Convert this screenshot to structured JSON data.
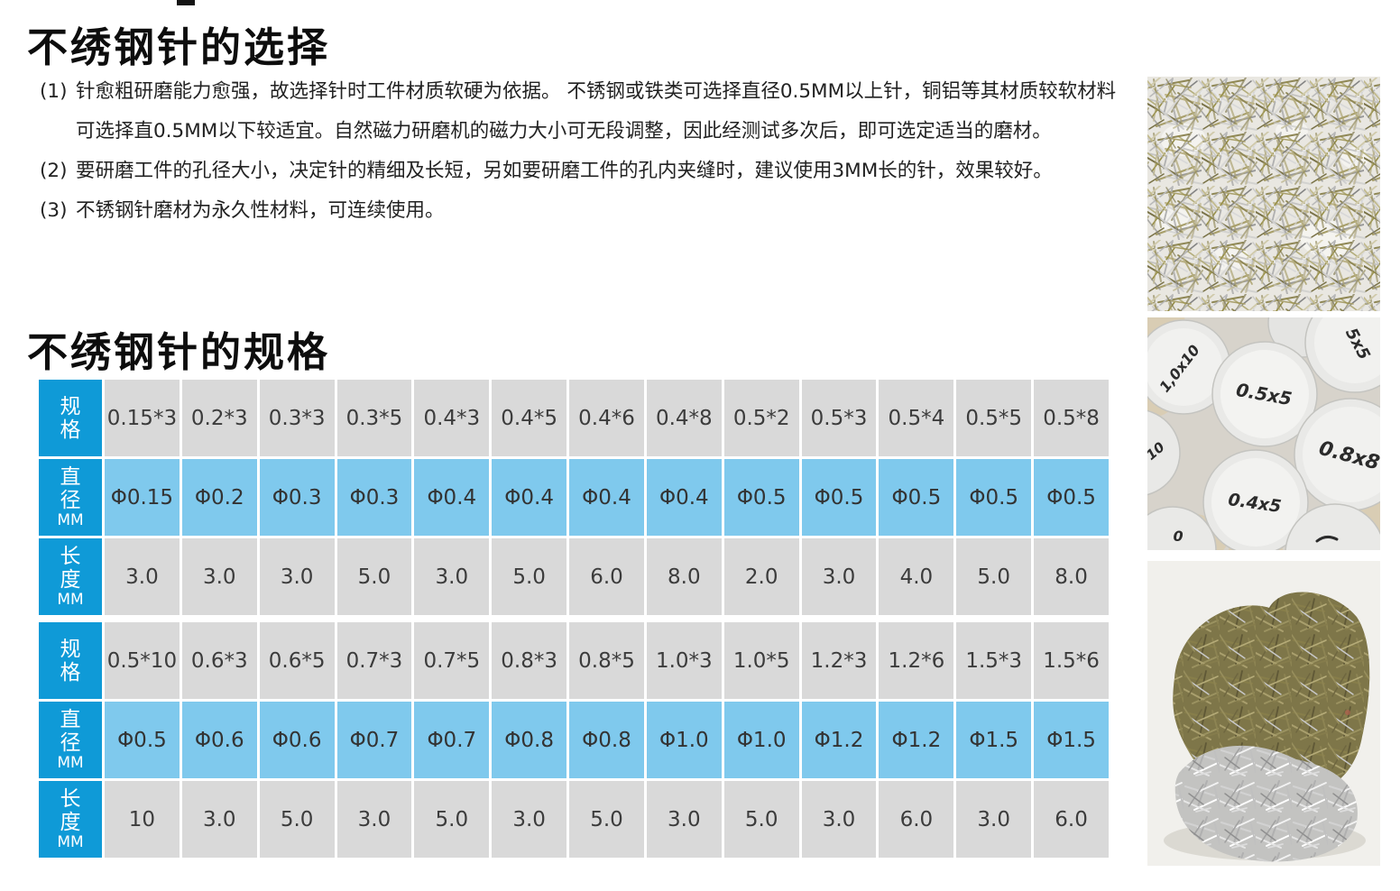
{
  "titles": {
    "selection": "不绣钢针的选择",
    "specification": "不绣钢针的规格"
  },
  "notes": [
    {
      "num": "(1)",
      "text": "针愈粗研磨能力愈强，故选择针时工件材质软硬为依据。 不锈钢或铁类可选择直径0.5MM以上针，铜铝等其材质较软材料可选择直0.5MM以下较适宜。自然磁力研磨机的磁力大小可无段调整，因此经测试多次后，即可选定适当的磨材。"
    },
    {
      "num": "(2)",
      "text": "要研磨工件的孔径大小，决定针的精细及长短，另如要研磨工件的孔内夹缝时，建议使用3MM长的针，效果较好。"
    },
    {
      "num": "(3)",
      "text": "不锈钢针磨材为永久性材料，可连续使用。"
    }
  ],
  "spec_tables": [
    {
      "rows": [
        {
          "kind": "spec",
          "header_lines": [
            "规",
            "格"
          ],
          "values": [
            "0.15*3",
            "0.2*3",
            "0.3*3",
            "0.3*5",
            "0.4*3",
            "0.4*5",
            "0.4*6",
            "0.4*8",
            "0.5*2",
            "0.5*3",
            "0.5*4",
            "0.5*5",
            "0.5*8"
          ]
        },
        {
          "kind": "diameter",
          "header_lines": [
            "直",
            "径",
            "MM"
          ],
          "values": [
            "Φ0.15",
            "Φ0.2",
            "Φ0.3",
            "Φ0.3",
            "Φ0.4",
            "Φ0.4",
            "Φ0.4",
            "Φ0.4",
            "Φ0.5",
            "Φ0.5",
            "Φ0.5",
            "Φ0.5",
            "Φ0.5"
          ]
        },
        {
          "kind": "length",
          "header_lines": [
            "长",
            "度",
            "MM"
          ],
          "values": [
            "3.0",
            "3.0",
            "3.0",
            "5.0",
            "3.0",
            "5.0",
            "6.0",
            "8.0",
            "2.0",
            "3.0",
            "4.0",
            "5.0",
            "8.0"
          ]
        }
      ]
    },
    {
      "rows": [
        {
          "kind": "spec",
          "header_lines": [
            "规",
            "格"
          ],
          "values": [
            "0.5*10",
            "0.6*3",
            "0.6*5",
            "0.7*3",
            "0.7*5",
            "0.8*3",
            "0.8*5",
            "1.0*3",
            "1.0*5",
            "1.2*3",
            "1.2*6",
            "1.5*3",
            "1.5*6"
          ]
        },
        {
          "kind": "diameter",
          "header_lines": [
            "直",
            "径",
            "MM"
          ],
          "values": [
            "Φ0.5",
            "Φ0.6",
            "Φ0.6",
            "Φ0.7",
            "Φ0.7",
            "Φ0.8",
            "Φ0.8",
            "Φ1.0",
            "Φ1.0",
            "Φ1.2",
            "Φ1.2",
            "Φ1.5",
            "Φ1.5"
          ]
        },
        {
          "kind": "length",
          "header_lines": [
            "长",
            "度",
            "MM"
          ],
          "values": [
            "10",
            "3.0",
            "5.0",
            "3.0",
            "5.0",
            "3.0",
            "5.0",
            "3.0",
            "5.0",
            "3.0",
            "6.0",
            "3.0",
            "6.0"
          ]
        }
      ]
    }
  ],
  "photos": {
    "caps_labels": [
      "1,0x10",
      "0.5x5",
      "5x5",
      "0.8x8",
      "0.4x5",
      "10",
      "0"
    ]
  },
  "colors": {
    "header_blue": "#0f9ad7",
    "light_blue": "#7fc9ed",
    "cell_gray": "#d9d9d9"
  }
}
